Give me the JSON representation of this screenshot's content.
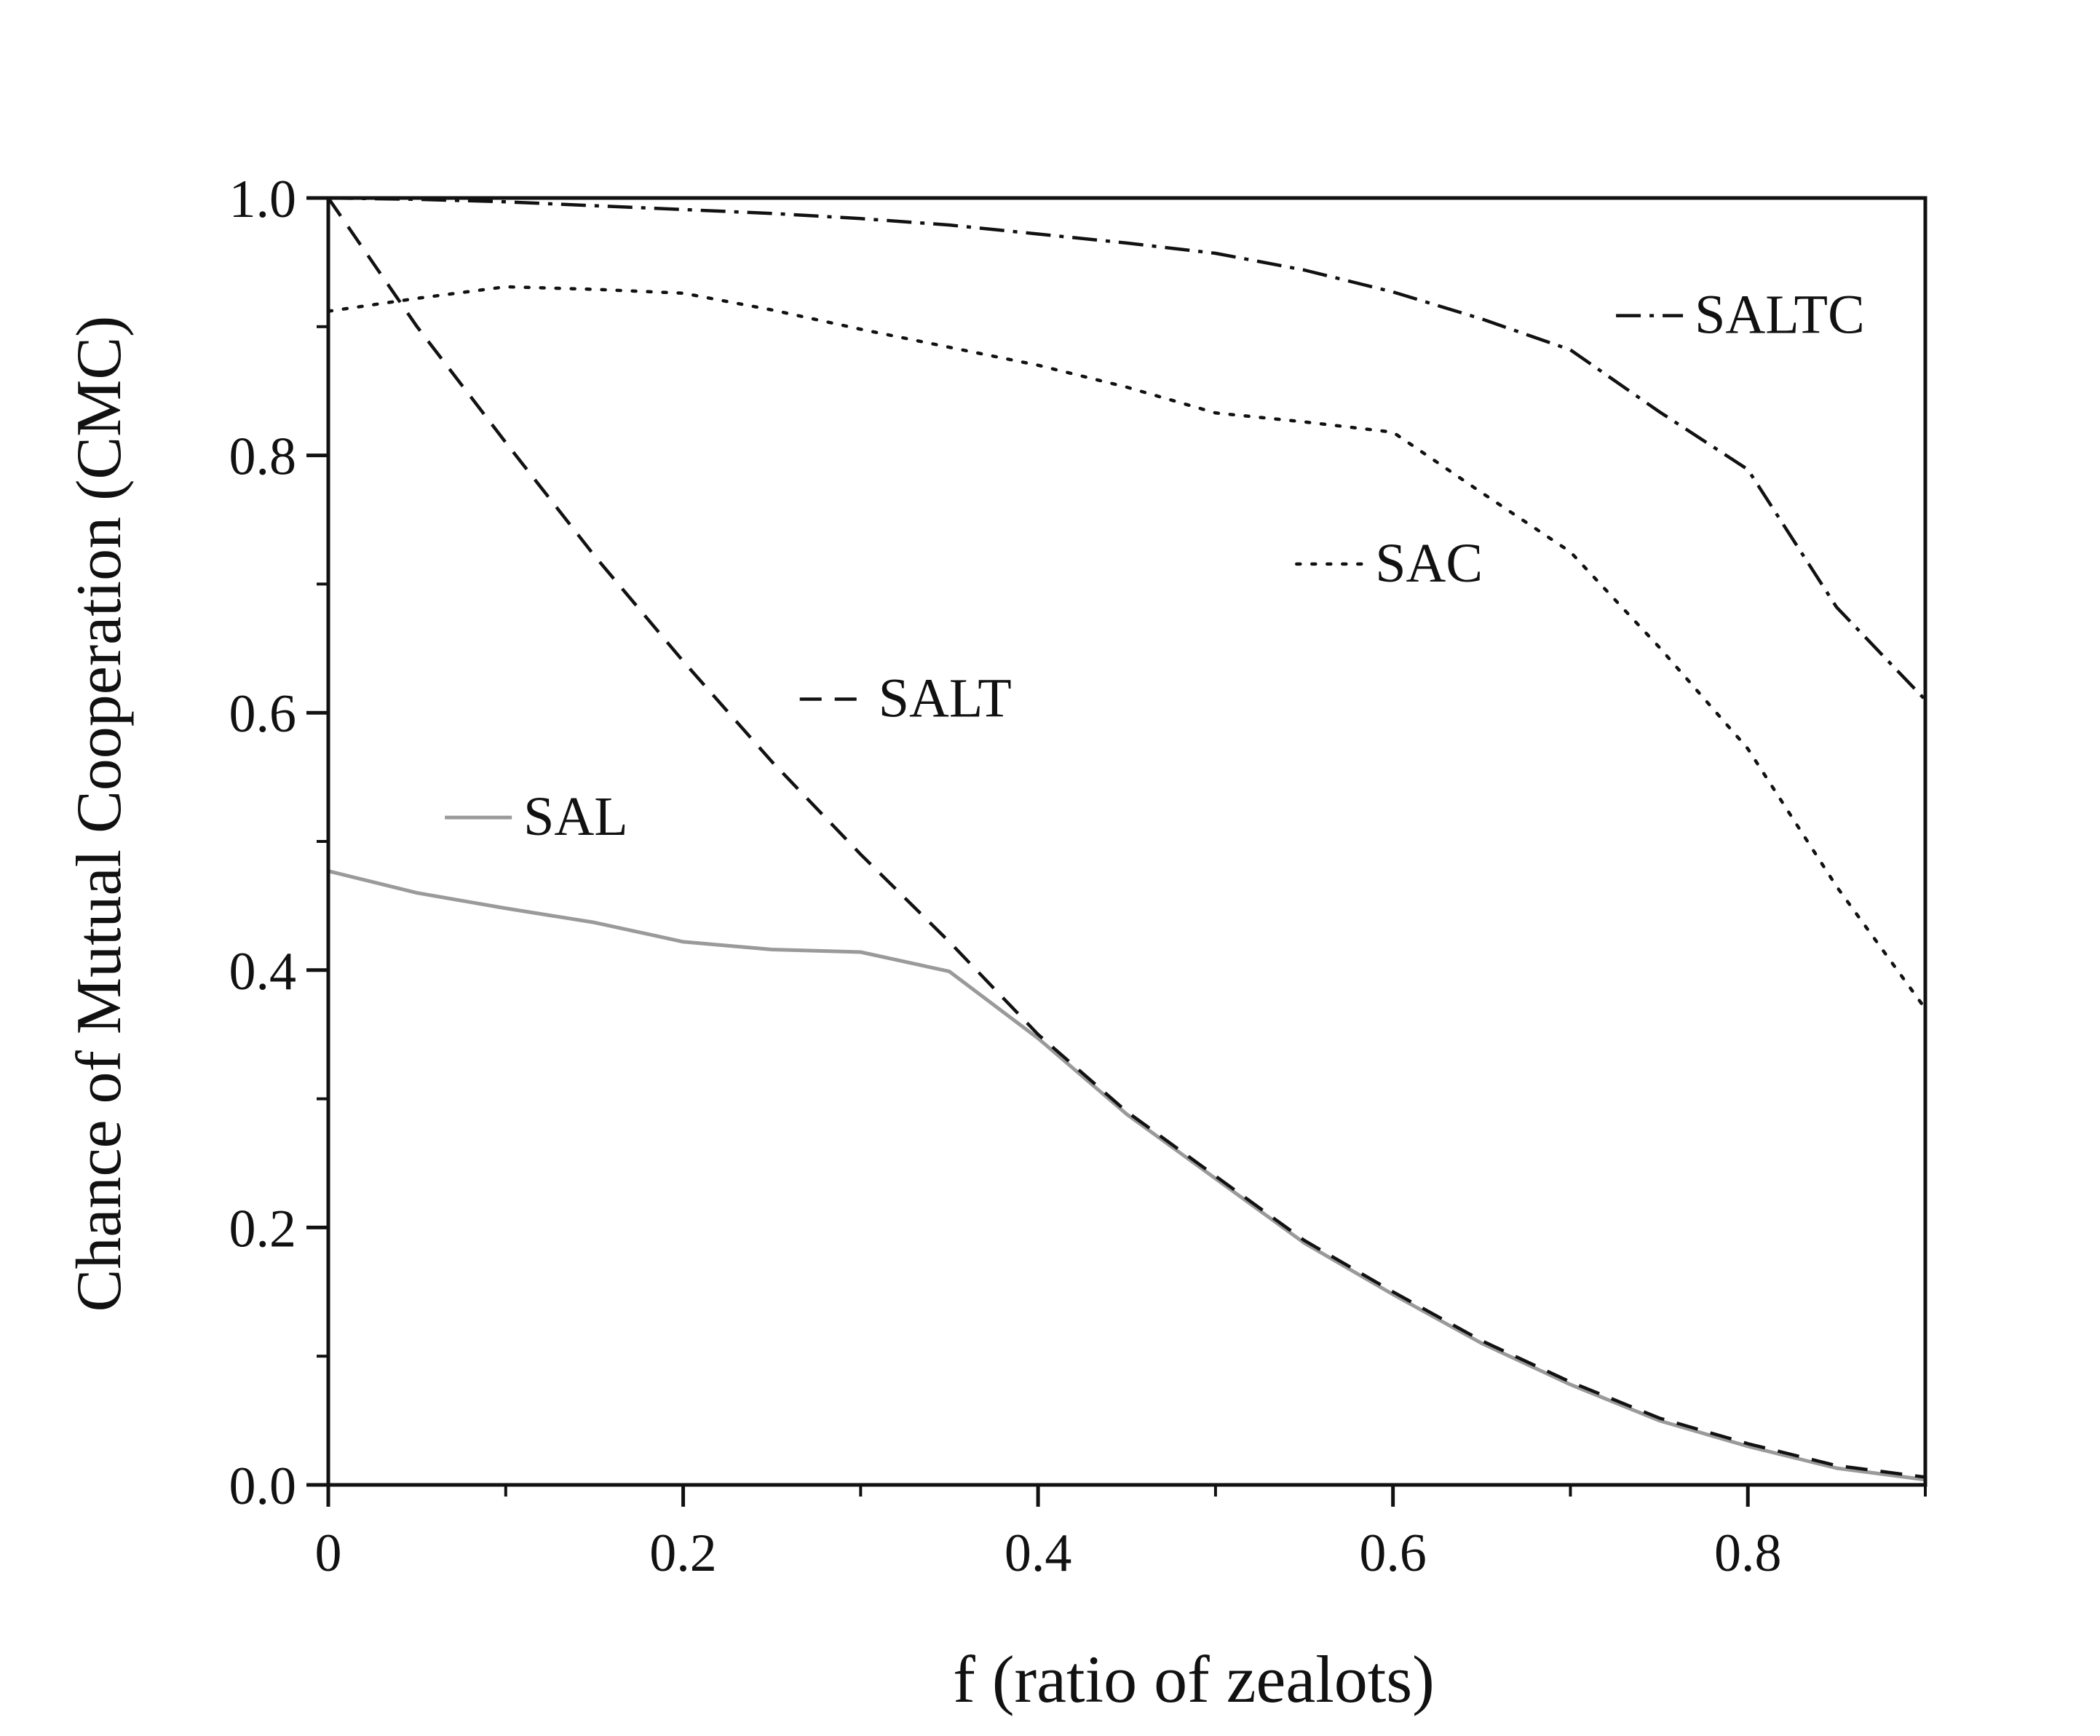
{
  "chart_data": {
    "type": "line",
    "xlabel": "f (ratio of zealots)",
    "ylabel": "Chance of Mutual Cooperation (CMC)",
    "xlim": [
      0,
      0.9
    ],
    "ylim": [
      0,
      1.0
    ],
    "x_ticks": [
      {
        "value": 0,
        "label": "0"
      },
      {
        "value": 0.2,
        "label": "0.2"
      },
      {
        "value": 0.4,
        "label": "0.4"
      },
      {
        "value": 0.6,
        "label": "0.6"
      },
      {
        "value": 0.8,
        "label": "0.8"
      }
    ],
    "y_ticks": [
      {
        "value": 0,
        "label": "0.0"
      },
      {
        "value": 0.2,
        "label": "0.2"
      },
      {
        "value": 0.4,
        "label": "0.4"
      },
      {
        "value": 0.6,
        "label": "0.6"
      },
      {
        "value": 0.8,
        "label": "0.8"
      },
      {
        "value": 1.0,
        "label": "1.0"
      }
    ],
    "grid": false,
    "legend": "inline labels",
    "series": [
      {
        "name": "SALTC",
        "style": "dash-dot",
        "color": "#111111",
        "x": [
          0,
          0.05,
          0.1,
          0.15,
          0.2,
          0.25,
          0.3,
          0.35,
          0.4,
          0.45,
          0.5,
          0.55,
          0.6,
          0.65,
          0.7,
          0.75,
          0.8,
          0.85,
          0.9
        ],
        "y": [
          1.0,
          0.999,
          0.997,
          0.994,
          0.991,
          0.988,
          0.984,
          0.979,
          0.972,
          0.965,
          0.957,
          0.944,
          0.927,
          0.906,
          0.882,
          0.834,
          0.789,
          0.682,
          0.61
        ]
      },
      {
        "name": "SAC",
        "style": "dotted",
        "color": "#111111",
        "x": [
          0,
          0.05,
          0.1,
          0.15,
          0.2,
          0.25,
          0.3,
          0.35,
          0.4,
          0.45,
          0.5,
          0.55,
          0.6,
          0.65,
          0.7,
          0.75,
          0.8,
          0.85,
          0.9
        ],
        "y": [
          0.912,
          0.922,
          0.931,
          0.929,
          0.926,
          0.913,
          0.898,
          0.884,
          0.87,
          0.853,
          0.833,
          0.826,
          0.818,
          0.771,
          0.725,
          0.651,
          0.572,
          0.465,
          0.37
        ]
      },
      {
        "name": "SALT",
        "style": "dashed",
        "color": "#111111",
        "x": [
          0,
          0.05,
          0.1,
          0.15,
          0.2,
          0.25,
          0.3,
          0.35,
          0.4,
          0.45,
          0.5,
          0.55,
          0.6,
          0.65,
          0.7,
          0.75,
          0.8,
          0.85,
          0.9
        ],
        "y": [
          1.0,
          0.9,
          0.81,
          0.722,
          0.64,
          0.562,
          0.49,
          0.422,
          0.35,
          0.29,
          0.24,
          0.19,
          0.15,
          0.112,
          0.08,
          0.052,
          0.032,
          0.015,
          0.006
        ]
      },
      {
        "name": "SAL",
        "style": "solid",
        "color": "#9a9a9a",
        "x": [
          0,
          0.05,
          0.1,
          0.15,
          0.2,
          0.25,
          0.3,
          0.35,
          0.4,
          0.45,
          0.5,
          0.55,
          0.6,
          0.65,
          0.7,
          0.75,
          0.8,
          0.85,
          0.9
        ],
        "y": [
          0.477,
          0.46,
          0.448,
          0.437,
          0.422,
          0.416,
          0.414,
          0.399,
          0.347,
          0.288,
          0.238,
          0.188,
          0.148,
          0.11,
          0.078,
          0.05,
          0.03,
          0.013,
          0.004
        ]
      }
    ],
    "labels": [
      {
        "series": "SALTC",
        "text": "SALTC",
        "x": 0.77,
        "y": 0.895
      },
      {
        "series": "SAC",
        "text": "SAC",
        "x": 0.59,
        "y": 0.702
      },
      {
        "series": "SALT",
        "text": "SALT",
        "x": 0.31,
        "y": 0.597
      },
      {
        "series": "SAL",
        "text": "SAL",
        "x": 0.11,
        "y": 0.505
      }
    ]
  }
}
